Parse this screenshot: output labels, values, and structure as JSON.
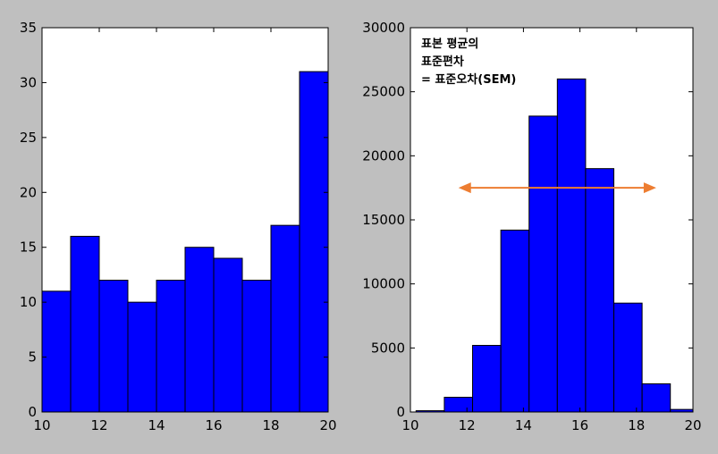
{
  "chart_data": [
    {
      "type": "bar",
      "title": "",
      "xlabel": "",
      "ylabel": "",
      "bin_edges": [
        10,
        11,
        12,
        13,
        14,
        15,
        16,
        17,
        18,
        19,
        20
      ],
      "values": [
        11,
        16,
        12,
        10,
        12,
        15,
        14,
        12,
        17,
        31
      ],
      "xlim": [
        10,
        20
      ],
      "ylim": [
        0,
        35
      ],
      "xticks": [
        10,
        12,
        14,
        16,
        18,
        20
      ],
      "yticks": [
        0,
        5,
        10,
        15,
        20,
        25,
        30,
        35
      ],
      "grid": false,
      "bar_color": "#0000ff"
    },
    {
      "type": "bar",
      "title": "",
      "xlabel": "",
      "ylabel": "",
      "bin_edges": [
        10.2,
        11.2,
        12.2,
        13.2,
        14.2,
        15.2,
        16.2,
        17.2,
        18.2,
        19.2,
        20.2
      ],
      "values": [
        100,
        1150,
        5200,
        14200,
        23100,
        26000,
        19000,
        8500,
        2200,
        200
      ],
      "xlim": [
        10,
        20
      ],
      "ylim": [
        0,
        30000
      ],
      "xticks": [
        10,
        12,
        14,
        16,
        18,
        20
      ],
      "yticks": [
        0,
        5000,
        10000,
        15000,
        20000,
        25000,
        30000
      ],
      "grid": false,
      "bar_color": "#0000ff",
      "annotation": {
        "lines": [
          "표본 평균의",
          "표준편차",
          "= 표준오차(SEM)"
        ]
      },
      "arrow": {
        "x_start": 11.7,
        "x_end": 18.7,
        "y": 17500,
        "color": "#ed7d31",
        "style": "double-headed"
      }
    }
  ]
}
